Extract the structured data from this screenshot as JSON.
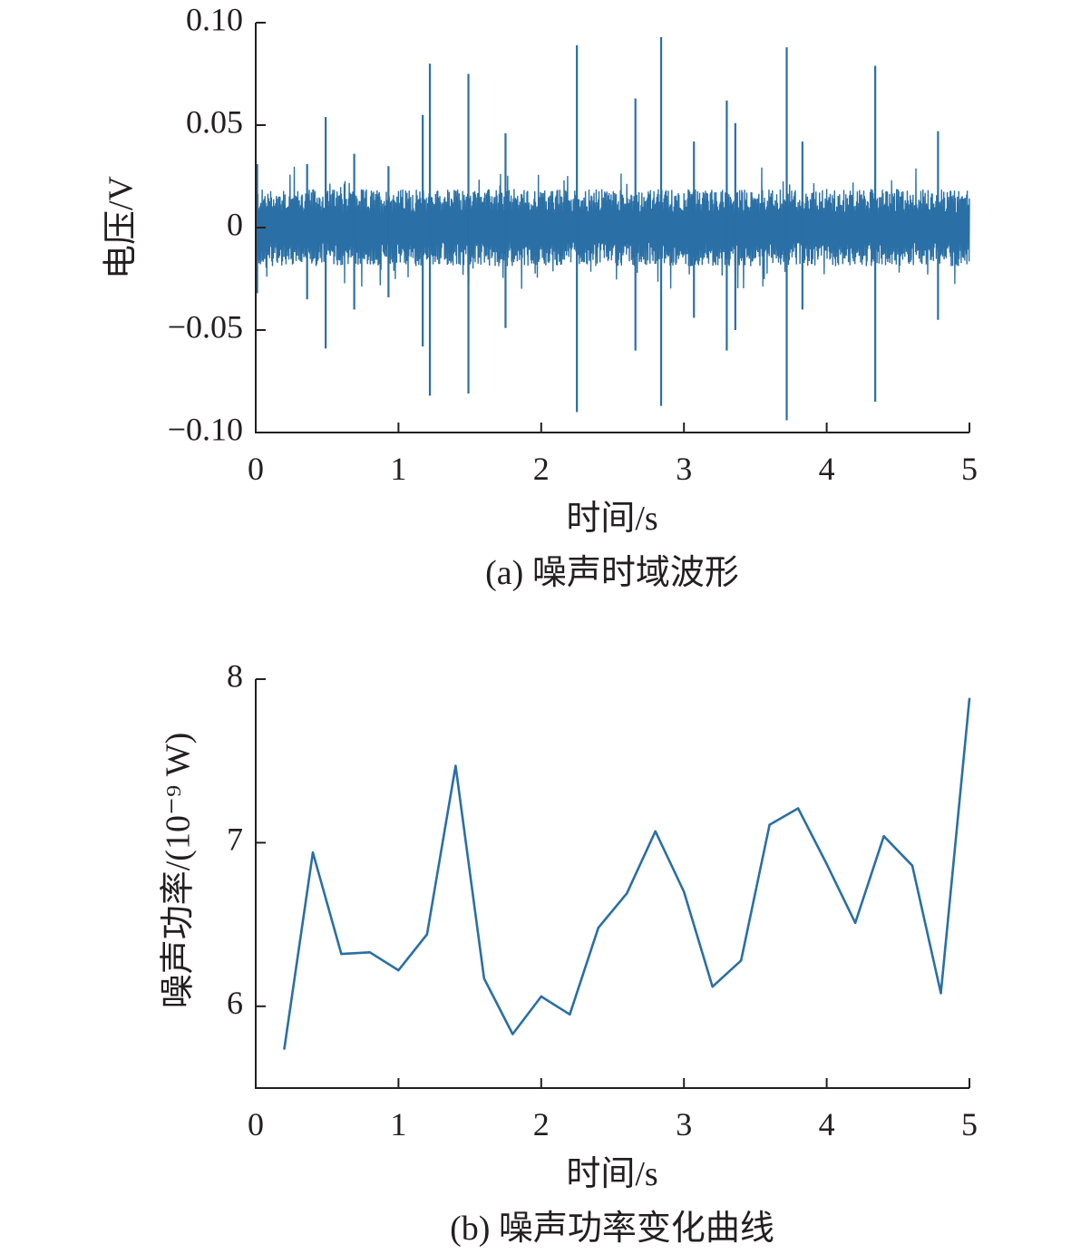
{
  "chart_data": [
    {
      "type": "line",
      "caption": "(a) 噪声时域波形",
      "xlabel": "时间/s",
      "ylabel": "电压/V",
      "xlim": [
        0,
        5
      ],
      "ylim": [
        -0.1,
        0.1
      ],
      "xticks": [
        0,
        1,
        2,
        3,
        4,
        5
      ],
      "xtick_labels": [
        "0",
        "1",
        "2",
        "3",
        "4",
        "5"
      ],
      "yticks": [
        0.1,
        0.05,
        0,
        -0.05,
        -0.1
      ],
      "ytick_labels": [
        "0.10",
        "0.05",
        "0",
        "−0.05",
        "−0.10"
      ],
      "color": "#2a6fa5",
      "noise_band": 0.013,
      "spikes": [
        {
          "x": 0.01,
          "up": 0.031,
          "down": -0.032
        },
        {
          "x": 0.36,
          "up": 0.031,
          "down": -0.035
        },
        {
          "x": 0.49,
          "up": 0.054,
          "down": -0.059
        },
        {
          "x": 0.69,
          "up": 0.036,
          "down": -0.04
        },
        {
          "x": 0.93,
          "up": 0.03,
          "down": -0.034
        },
        {
          "x": 1.17,
          "up": 0.055,
          "down": -0.058
        },
        {
          "x": 1.22,
          "up": 0.08,
          "down": -0.082
        },
        {
          "x": 1.49,
          "up": 0.075,
          "down": -0.081
        },
        {
          "x": 1.75,
          "up": 0.046,
          "down": -0.049
        },
        {
          "x": 2.25,
          "up": 0.089,
          "down": -0.09
        },
        {
          "x": 2.66,
          "up": 0.063,
          "down": -0.06
        },
        {
          "x": 2.84,
          "up": 0.093,
          "down": -0.087
        },
        {
          "x": 3.07,
          "up": 0.042,
          "down": -0.044
        },
        {
          "x": 3.3,
          "up": 0.062,
          "down": -0.06
        },
        {
          "x": 3.36,
          "up": 0.051,
          "down": -0.05
        },
        {
          "x": 3.72,
          "up": 0.088,
          "down": -0.094
        },
        {
          "x": 3.83,
          "up": 0.042,
          "down": -0.04
        },
        {
          "x": 4.34,
          "up": 0.079,
          "down": -0.085
        },
        {
          "x": 4.78,
          "up": 0.047,
          "down": -0.045
        }
      ]
    },
    {
      "type": "line",
      "caption": "(b) 噪声功率变化曲线",
      "xlabel": "时间/s",
      "ylabel": "噪声功率/(10⁻⁹ W)",
      "xlim": [
        0,
        5
      ],
      "ylim": [
        5.5,
        8
      ],
      "xticks": [
        0,
        1,
        2,
        3,
        4,
        5
      ],
      "xtick_labels": [
        "0",
        "1",
        "2",
        "3",
        "4",
        "5"
      ],
      "yticks": [
        8,
        7,
        6
      ],
      "ytick_labels": [
        "8",
        "7",
        "6"
      ],
      "color": "#2a6fa5",
      "x": [
        0.2,
        0.4,
        0.6,
        0.8,
        1.0,
        1.2,
        1.4,
        1.6,
        1.8,
        2.0,
        2.2,
        2.4,
        2.6,
        2.8,
        3.0,
        3.2,
        3.4,
        3.6,
        3.8,
        4.0,
        4.2,
        4.4,
        4.6,
        4.8,
        5.0
      ],
      "y": [
        5.74,
        6.94,
        6.32,
        6.33,
        6.22,
        6.44,
        7.47,
        6.17,
        5.83,
        6.06,
        5.95,
        6.48,
        6.69,
        7.07,
        6.7,
        6.12,
        6.28,
        7.11,
        7.21,
        6.87,
        6.51,
        7.04,
        6.86,
        6.08,
        7.88
      ]
    }
  ]
}
